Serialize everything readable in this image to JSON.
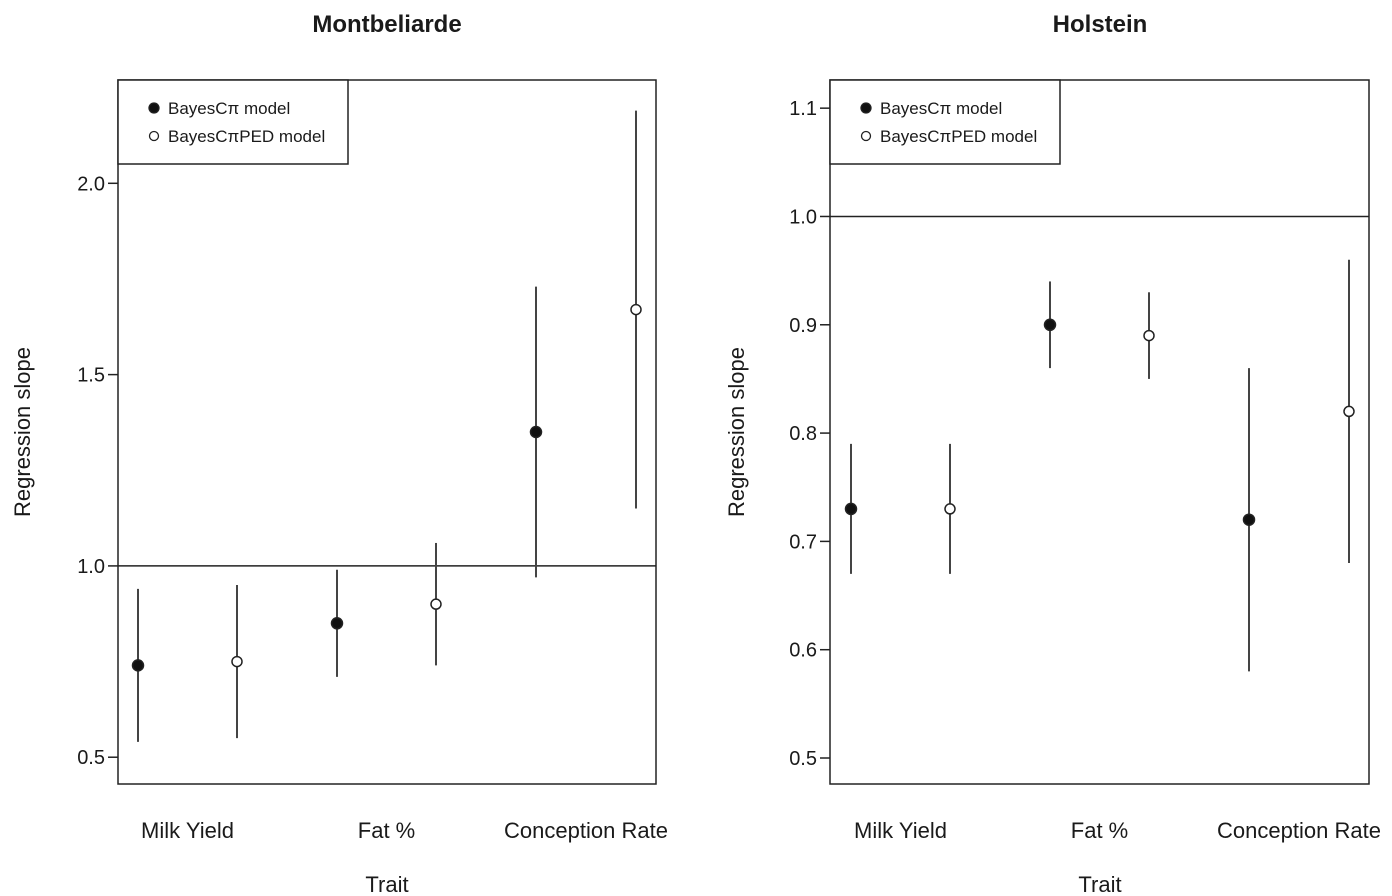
{
  "chart_data": [
    {
      "type": "scatter",
      "title": "Montbeliarde",
      "xlabel": "Trait",
      "ylabel": "Regression slope",
      "categories": [
        "Milk Yield",
        "Fat %",
        "Conception Rate"
      ],
      "yticks": [
        "0.5",
        "1.0",
        "1.5",
        "2.0"
      ],
      "ylim": [
        0.43,
        2.27
      ],
      "reference_line": 1.0,
      "legend_position": "top-left",
      "series": [
        {
          "name": "BayesCπ model",
          "marker": "filled-circle",
          "values": [
            0.74,
            0.85,
            1.35
          ],
          "lower": [
            0.54,
            0.71,
            0.97
          ],
          "upper": [
            0.94,
            0.99,
            1.73
          ]
        },
        {
          "name": "BayesCπPED model",
          "marker": "open-circle",
          "values": [
            0.75,
            0.9,
            1.67
          ],
          "lower": [
            0.55,
            0.74,
            1.15
          ],
          "upper": [
            0.95,
            1.06,
            2.19
          ]
        }
      ]
    },
    {
      "type": "scatter",
      "title": "Holstein",
      "xlabel": "Trait",
      "ylabel": "Regression slope",
      "categories": [
        "Milk Yield",
        "Fat %",
        "Conception Rate"
      ],
      "yticks": [
        "0.5",
        "0.6",
        "0.7",
        "0.8",
        "0.9",
        "1.0",
        "1.1"
      ],
      "ylim": [
        0.476,
        1.126
      ],
      "reference_line": 1.0,
      "legend_position": "top-left",
      "series": [
        {
          "name": "BayesCπ model",
          "marker": "filled-circle",
          "values": [
            0.73,
            0.9,
            0.72
          ],
          "lower": [
            0.67,
            0.86,
            0.58
          ],
          "upper": [
            0.79,
            0.94,
            0.86
          ]
        },
        {
          "name": "BayesCπPED model",
          "marker": "open-circle",
          "values": [
            0.73,
            0.89,
            0.82
          ],
          "lower": [
            0.67,
            0.85,
            0.68
          ],
          "upper": [
            0.79,
            0.93,
            0.96
          ]
        }
      ]
    }
  ]
}
